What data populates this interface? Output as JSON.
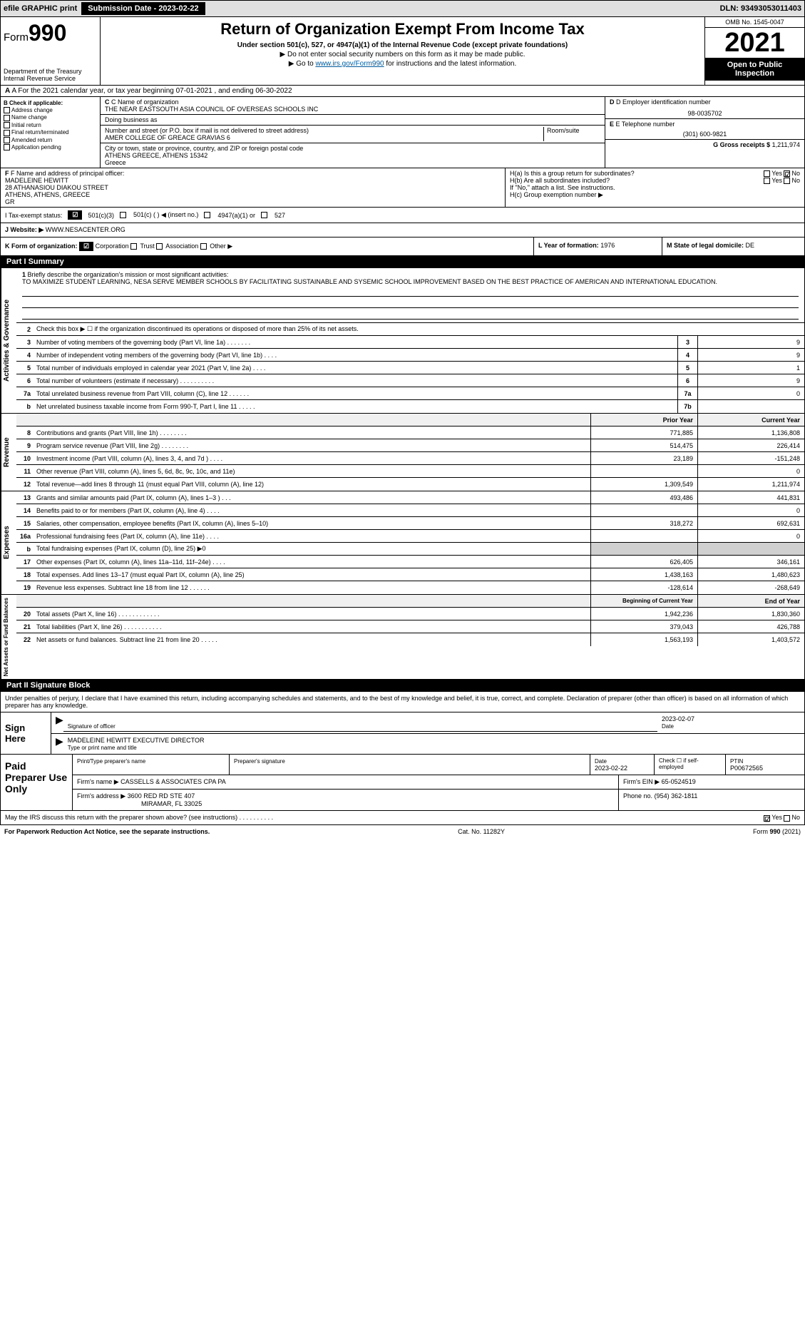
{
  "topbar": {
    "efile": "efile GRAPHIC print",
    "submission_label": "Submission Date - 2023-02-22",
    "dln": "DLN: 93493053011403"
  },
  "header": {
    "form_label": "Form",
    "form_num": "990",
    "dept": "Department of the Treasury",
    "irs": "Internal Revenue Service",
    "title": "Return of Organization Exempt From Income Tax",
    "sub1": "Under section 501(c), 527, or 4947(a)(1) of the Internal Revenue Code (except private foundations)",
    "sub2": "▶ Do not enter social security numbers on this form as it may be made public.",
    "sub3_pre": "▶ Go to ",
    "sub3_link": "www.irs.gov/Form990",
    "sub3_post": " for instructions and the latest information.",
    "omb": "OMB No. 1545-0047",
    "year": "2021",
    "otp": "Open to Public Inspection"
  },
  "row_a": "A For the 2021 calendar year, or tax year beginning 07-01-2021    , and ending 06-30-2022",
  "col_b": {
    "hdr": "B Check if applicable:",
    "items": [
      "Address change",
      "Name change",
      "Initial return",
      "Final return/terminated",
      "Amended return",
      "Application pending"
    ]
  },
  "col_c": {
    "name_lbl": "C Name of organization",
    "name": "THE NEAR EASTSOUTH ASIA COUNCIL OF OVERSEAS SCHOOLS INC",
    "dba_lbl": "Doing business as",
    "addr_lbl": "Number and street (or P.O. box if mail is not delivered to street address)",
    "room_lbl": "Room/suite",
    "addr": "AMER COLLEGE OF GREACE GRAVIAS 6",
    "city_lbl": "City or town, state or province, country, and ZIP or foreign postal code",
    "city": "ATHENS GREECE, ATHENS  15342",
    "country": "Greece"
  },
  "col_de": {
    "d_lbl": "D Employer identification number",
    "d_val": "98-0035702",
    "e_lbl": "E Telephone number",
    "e_val": "(301) 600-9821",
    "g_lbl": "G Gross receipts $",
    "g_val": "1,211,974"
  },
  "row_f": {
    "lbl": "F Name and address of principal officer:",
    "name": "MADELEINE HEWITT",
    "addr1": "28 ATHANASIOU DIAKOU STREET",
    "addr2": "ATHENS, ATHENS, GREECE",
    "addr3": "GR"
  },
  "row_h": {
    "a": "H(a) Is this a group return for subordinates?",
    "b": "H(b) Are all subordinates included?",
    "note": "If \"No,\" attach a list. See instructions.",
    "c": "H(c) Group exemption number ▶",
    "yes": "Yes",
    "no": "No"
  },
  "row_i": {
    "lbl": "I     Tax-exempt status:",
    "o1": "501(c)(3)",
    "o2": "501(c) (  ) ◀ (insert no.)",
    "o3": "4947(a)(1) or",
    "o4": "527"
  },
  "row_j": {
    "lbl": "J   Website: ▶",
    "val": "WWW.NESACENTER.ORG"
  },
  "row_k": {
    "lbl": "K Form of organization:",
    "o1": "Corporation",
    "o2": "Trust",
    "o3": "Association",
    "o4": "Other ▶"
  },
  "row_l": {
    "lbl": "L Year of formation:",
    "val": "1976"
  },
  "row_m": {
    "lbl": "M State of legal domicile:",
    "val": "DE"
  },
  "part1": {
    "hdr": "Part I      Summary"
  },
  "mission": {
    "num": "1",
    "lbl": "Briefly describe the organization's mission or most significant activities:",
    "text": "TO MAXIMIZE STUDENT LEARNING, NESA SERVE MEMBER SCHOOLS BY FACILITATING SUSTAINABLE AND SYSEMIC SCHOOL IMPROVEMENT BASED ON THE BEST PRACTICE OF AMERICAN AND INTERNATIONAL EDUCATION."
  },
  "gov_lines": [
    {
      "n": "2",
      "l": "Check this box ▶ ☐ if the organization discontinued its operations or disposed of more than 25% of its net assets."
    },
    {
      "n": "3",
      "l": "Number of voting members of the governing body (Part VI, line 1a)   .    .    .    .    .    .    .",
      "box": "3",
      "v": "9"
    },
    {
      "n": "4",
      "l": "Number of independent voting members of the governing body (Part VI, line 1b)   .    .    .    .",
      "box": "4",
      "v": "9"
    },
    {
      "n": "5",
      "l": "Total number of individuals employed in calendar year 2021 (Part V, line 2a)   .    .    .    .",
      "box": "5",
      "v": "1"
    },
    {
      "n": "6",
      "l": "Total number of volunteers (estimate if necessary)   .    .    .    .    .    .    .    .    .    .",
      "box": "6",
      "v": "9"
    },
    {
      "n": "7a",
      "l": "Total unrelated business revenue from Part VIII, column (C), line 12   .    .    .    .    .    .",
      "box": "7a",
      "v": "0"
    },
    {
      "n": "b",
      "l": "Net unrelated business taxable income from Form 990-T, Part I, line 11   .    .    .    .    .",
      "box": "7b",
      "v": ""
    }
  ],
  "col_hdrs": {
    "prior": "Prior Year",
    "current": "Current Year"
  },
  "rev_lines": [
    {
      "n": "8",
      "l": "Contributions and grants (Part VIII, line 1h)   .    .    .    .    .    .    .    .",
      "p": "771,885",
      "c": "1,136,808"
    },
    {
      "n": "9",
      "l": "Program service revenue (Part VIII, line 2g)   .    .    .    .    .    .    .    .",
      "p": "514,475",
      "c": "226,414"
    },
    {
      "n": "10",
      "l": "Investment income (Part VIII, column (A), lines 3, 4, and 7d )   .    .    .    .",
      "p": "23,189",
      "c": "-151,248"
    },
    {
      "n": "11",
      "l": "Other revenue (Part VIII, column (A), lines 5, 6d, 8c, 9c, 10c, and 11e)",
      "p": "",
      "c": "0"
    },
    {
      "n": "12",
      "l": "Total revenue—add lines 8 through 11 (must equal Part VIII, column (A), line 12)",
      "p": "1,309,549",
      "c": "1,211,974"
    }
  ],
  "exp_lines": [
    {
      "n": "13",
      "l": "Grants and similar amounts paid (Part IX, column (A), lines 1–3 )   .    .    .",
      "p": "493,486",
      "c": "441,831"
    },
    {
      "n": "14",
      "l": "Benefits paid to or for members (Part IX, column (A), line 4)   .    .    .    .",
      "p": "",
      "c": "0"
    },
    {
      "n": "15",
      "l": "Salaries, other compensation, employee benefits (Part IX, column (A), lines 5–10)",
      "p": "318,272",
      "c": "692,631"
    },
    {
      "n": "16a",
      "l": "Professional fundraising fees (Part IX, column (A), line 11e)   .    .    .    .",
      "p": "",
      "c": "0"
    },
    {
      "n": "b",
      "l": "Total fundraising expenses (Part IX, column (D), line 25) ▶0",
      "p": "shade",
      "c": "shade"
    },
    {
      "n": "17",
      "l": "Other expenses (Part IX, column (A), lines 11a–11d, 11f–24e)   .    .    .    .",
      "p": "626,405",
      "c": "346,161"
    },
    {
      "n": "18",
      "l": "Total expenses. Add lines 13–17 (must equal Part IX, column (A), line 25)",
      "p": "1,438,163",
      "c": "1,480,623"
    },
    {
      "n": "19",
      "l": "Revenue less expenses. Subtract line 18 from line 12   .    .    .    .    .    .",
      "p": "-128,614",
      "c": "-268,649"
    }
  ],
  "na_hdrs": {
    "beg": "Beginning of Current Year",
    "end": "End of Year"
  },
  "na_lines": [
    {
      "n": "20",
      "l": "Total assets (Part X, line 16)   .    .    .    .    .    .    .    .    .    .    .    .",
      "p": "1,942,236",
      "c": "1,830,360"
    },
    {
      "n": "21",
      "l": "Total liabilities (Part X, line 26)   .    .    .    .    .    .    .    .    .    .    .",
      "p": "379,043",
      "c": "426,788"
    },
    {
      "n": "22",
      "l": "Net assets or fund balances. Subtract line 21 from line 20   .    .    .    .    .",
      "p": "1,563,193",
      "c": "1,403,572"
    }
  ],
  "tabs": {
    "gov": "Activities & Governance",
    "rev": "Revenue",
    "exp": "Expenses",
    "na": "Net Assets or Fund Balances"
  },
  "part2": {
    "hdr": "Part II     Signature Block"
  },
  "sig": {
    "intro": "Under penalties of perjury, I declare that I have examined this return, including accompanying schedules and statements, and to the best of my knowledge and belief, it is true, correct, and complete. Declaration of preparer (other than officer) is based on all information of which preparer has any knowledge.",
    "sign_here": "Sign Here",
    "sig_officer": "Signature of officer",
    "date": "Date",
    "date_val": "2023-02-07",
    "name": "MADELEINE HEWITT  EXECUTIVE DIRECTOR",
    "name_lbl": "Type or print name and title"
  },
  "paid": {
    "hdr": "Paid Preparer Use Only",
    "r1": {
      "name_lbl": "Print/Type preparer's name",
      "sig_lbl": "Preparer's signature",
      "date_lbl": "Date",
      "date_val": "2023-02-22",
      "check_lbl": "Check ☐ if self-employed",
      "ptin_lbl": "PTIN",
      "ptin_val": "P00672565"
    },
    "r2": {
      "firm_lbl": "Firm's name    ▶",
      "firm_val": "CASSELLS & ASSOCIATES CPA PA",
      "ein_lbl": "Firm's EIN ▶",
      "ein_val": "65-0524519"
    },
    "r3": {
      "addr_lbl": "Firm's address ▶",
      "addr_val1": "3600 RED RD STE 407",
      "addr_val2": "MIRAMAR, FL  33025",
      "phone_lbl": "Phone no.",
      "phone_val": "(954) 362-1811"
    }
  },
  "discuss": {
    "q": "May the IRS discuss this return with the preparer shown above? (see instructions)   .    .    .    .    .    .    .    .    .    .",
    "yes": "Yes",
    "no": "No"
  },
  "footer": {
    "pra": "For Paperwork Reduction Act Notice, see the separate instructions.",
    "cat": "Cat. No. 11282Y",
    "form": "Form 990 (2021)"
  }
}
